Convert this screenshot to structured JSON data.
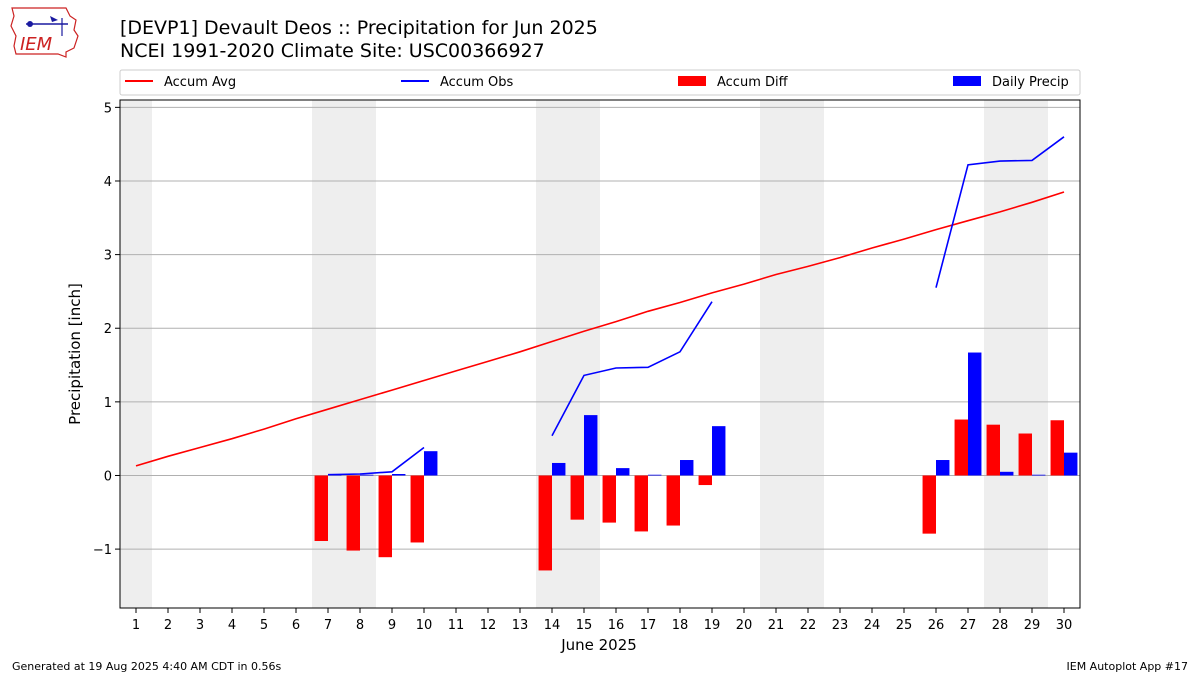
{
  "header": {
    "title_line1": "[DEVP1] Devault Deos :: Precipitation for Jun 2025",
    "title_line2": "NCEI 1991-2020 Climate Site: USC00366927"
  },
  "logo": {
    "text": "IEM",
    "icon": "iem-iowa-state-logo",
    "color": "#cc2222"
  },
  "footer": {
    "generated": "Generated at 19 Aug 2025 4:40 AM CDT in 0.56s",
    "app": "IEM Autoplot App #17"
  },
  "chart_data": {
    "type": "bar",
    "xlabel": "June 2025",
    "ylabel": "Precipitation [inch]",
    "xlim": [
      0.5,
      30.5
    ],
    "ylim": [
      -1.8,
      5.1
    ],
    "yticks": [
      -1,
      0,
      1,
      2,
      3,
      4,
      5
    ],
    "ytick_labels": [
      "−1",
      "0",
      "1",
      "2",
      "3",
      "4",
      "5"
    ],
    "grid": "horizontal",
    "legend_placement": "top",
    "weekend_days": [
      1,
      7,
      8,
      14,
      15,
      21,
      22,
      28,
      29
    ],
    "x": [
      1,
      2,
      3,
      4,
      5,
      6,
      7,
      8,
      9,
      10,
      11,
      12,
      13,
      14,
      15,
      16,
      17,
      18,
      19,
      20,
      21,
      22,
      23,
      24,
      25,
      26,
      27,
      28,
      29,
      30
    ],
    "legend": [
      {
        "name": "Accum Avg",
        "kind": "line",
        "color": "#ff0000"
      },
      {
        "name": "Accum Obs",
        "kind": "line",
        "color": "#0000ff"
      },
      {
        "name": "Accum Diff",
        "kind": "bar",
        "color": "#ff0000"
      },
      {
        "name": "Daily Precip",
        "kind": "bar",
        "color": "#0000ff"
      }
    ],
    "series": [
      {
        "name": "Accum Avg",
        "color": "#ff0000",
        "values": [
          0.13,
          0.26,
          0.38,
          0.5,
          0.63,
          0.77,
          0.9,
          1.03,
          1.16,
          1.29,
          1.42,
          1.55,
          1.68,
          1.82,
          1.96,
          2.09,
          2.23,
          2.35,
          2.48,
          2.6,
          2.73,
          2.84,
          2.96,
          3.09,
          3.21,
          3.34,
          3.46,
          3.58,
          3.71,
          3.85
        ]
      },
      {
        "name": "Accum Obs",
        "color": "#0000ff",
        "values": [
          null,
          null,
          null,
          null,
          null,
          null,
          0.01,
          0.02,
          0.05,
          0.38,
          null,
          null,
          null,
          0.54,
          1.36,
          1.46,
          1.47,
          1.68,
          2.36,
          null,
          null,
          null,
          null,
          null,
          null,
          2.55,
          4.22,
          4.27,
          4.28,
          4.6
        ]
      },
      {
        "name": "Accum Diff",
        "color": "#ff0000",
        "values": [
          null,
          null,
          null,
          null,
          null,
          null,
          -0.89,
          -1.02,
          -1.11,
          -0.91,
          null,
          null,
          null,
          -1.29,
          -0.6,
          -0.64,
          -0.76,
          -0.68,
          -0.13,
          null,
          null,
          null,
          null,
          null,
          null,
          -0.79,
          0.76,
          0.69,
          0.57,
          0.75
        ]
      },
      {
        "name": "Daily Precip",
        "color": "#0000ff",
        "values": [
          null,
          null,
          null,
          null,
          null,
          null,
          0.01,
          0.01,
          0.02,
          0.33,
          null,
          null,
          null,
          0.17,
          0.82,
          0.1,
          0.01,
          0.21,
          0.67,
          null,
          null,
          null,
          null,
          null,
          null,
          0.21,
          1.67,
          0.05,
          0.01,
          0.31
        ]
      }
    ]
  }
}
